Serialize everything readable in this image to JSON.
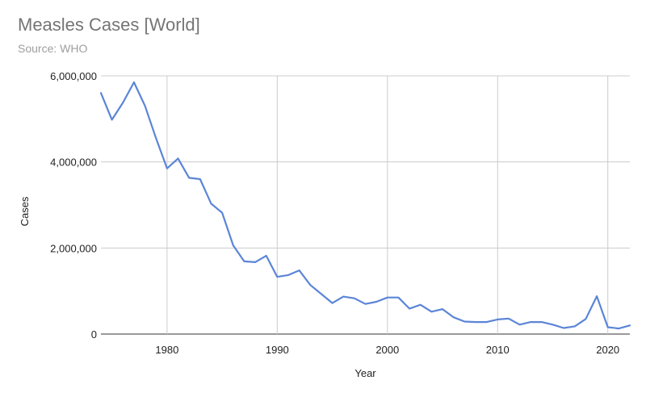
{
  "chart_data": {
    "type": "line",
    "title": "Measles Cases [World]",
    "subtitle": "Source: WHO",
    "xlabel": "Year",
    "ylabel": "Cases",
    "xlim": [
      1974,
      2022
    ],
    "ylim": [
      0,
      6000000
    ],
    "x_ticks": [
      1980,
      1990,
      2000,
      2010,
      2020
    ],
    "y_ticks": [
      0,
      2000000,
      4000000,
      6000000
    ],
    "y_tick_labels": [
      "0",
      "2,000,000",
      "4,000,000",
      "6,000,000"
    ],
    "grid": "vertical",
    "series": [
      {
        "color": "#5b85d7",
        "x": [
          1974,
          1975,
          1976,
          1977,
          1978,
          1979,
          1980,
          1981,
          1982,
          1983,
          1984,
          1985,
          1986,
          1987,
          1988,
          1989,
          1990,
          1991,
          1992,
          1993,
          1994,
          1995,
          1996,
          1997,
          1998,
          1999,
          2000,
          2001,
          2002,
          2003,
          2004,
          2005,
          2006,
          2007,
          2008,
          2009,
          2010,
          2011,
          2012,
          2013,
          2014,
          2015,
          2016,
          2017,
          2018,
          2019,
          2020,
          2021,
          2022
        ],
        "values": [
          5600000,
          4980000,
          5380000,
          5850000,
          5300000,
          4550000,
          3850000,
          4080000,
          3630000,
          3600000,
          3030000,
          2820000,
          2060000,
          1690000,
          1670000,
          1820000,
          1330000,
          1370000,
          1480000,
          1140000,
          930000,
          720000,
          870000,
          830000,
          700000,
          750000,
          850000,
          850000,
          590000,
          680000,
          520000,
          580000,
          390000,
          290000,
          280000,
          280000,
          340000,
          360000,
          220000,
          280000,
          280000,
          220000,
          140000,
          180000,
          350000,
          880000,
          160000,
          130000,
          200000
        ]
      }
    ]
  }
}
